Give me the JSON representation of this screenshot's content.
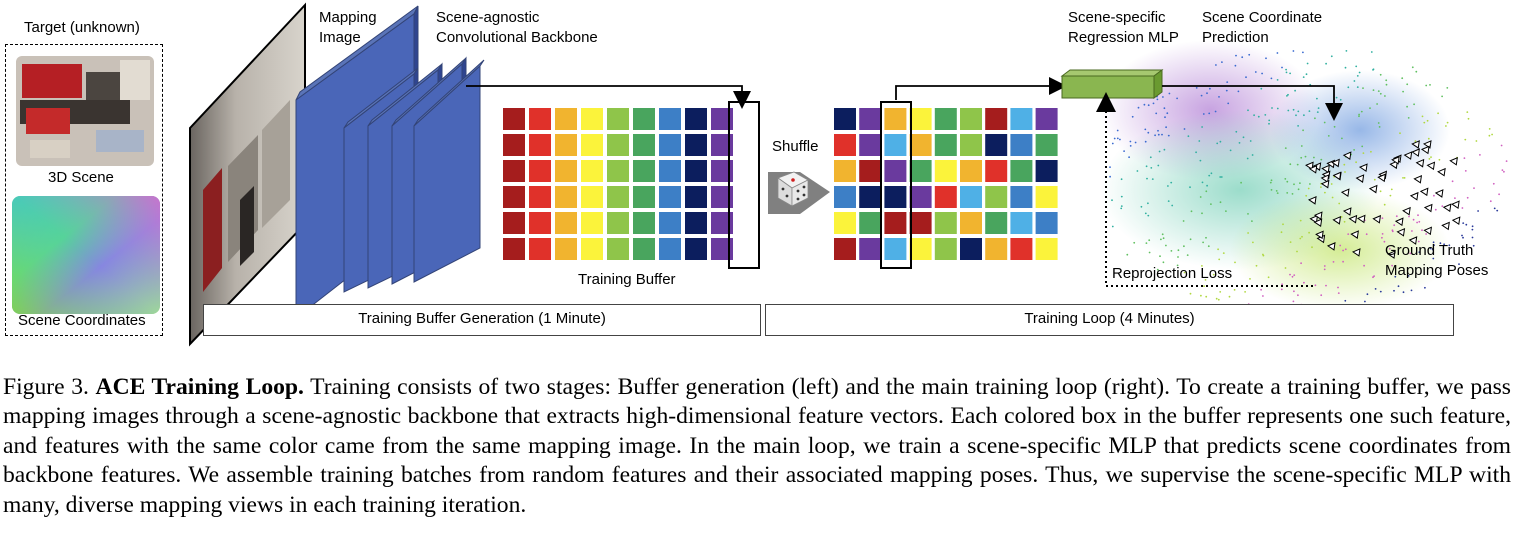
{
  "figure": {
    "target_label": "Target (unknown)",
    "scene_label": "3D Scene",
    "coords_label": "Scene Coordinates",
    "mapping_image_label": [
      "Mapping",
      "Image"
    ],
    "backbone_label": [
      "Scene-agnostic",
      "Convolutional Backbone"
    ],
    "training_buffer_label": "Training Buffer",
    "shuffle_label": "Shuffle",
    "mlp_label": [
      "Scene-specific",
      "Regression MLP"
    ],
    "prediction_label": [
      "Scene Coordinate",
      "Prediction"
    ],
    "reprojection_label": "Reprojection Loss",
    "gt_label": [
      "Ground Truth",
      "Mapping Poses"
    ],
    "stage1_label": "Training Buffer Generation (1 Minute)",
    "stage2_label": "Training Loop (4 Minutes)",
    "palette": [
      "#a51d1d",
      "#e0312a",
      "#f1b42f",
      "#fbf33b",
      "#8fc54a",
      "#49a55e",
      "#3d7fc6",
      "#0c1e5e",
      "#6a3a9e",
      "#4fb0e6"
    ],
    "buffer_columns": [
      0,
      1,
      2,
      3,
      4,
      5,
      6,
      7,
      8
    ],
    "shuffled_grid": [
      [
        7,
        8,
        2,
        3,
        5,
        4,
        0,
        9,
        8
      ],
      [
        1,
        8,
        9,
        2,
        5,
        4,
        7,
        6,
        5
      ],
      [
        2,
        0,
        8,
        5,
        3,
        2,
        1,
        5,
        7
      ],
      [
        6,
        7,
        7,
        8,
        1,
        9,
        4,
        6,
        3
      ],
      [
        3,
        5,
        0,
        0,
        4,
        2,
        5,
        9,
        6
      ],
      [
        0,
        8,
        9,
        3,
        4,
        7,
        2,
        1,
        3
      ]
    ]
  },
  "caption": {
    "prefix": "Figure 3.",
    "title": "ACE Training Loop.",
    "body": "Training consists of two stages: Buffer generation (left) and the main training loop (right). To create a training buffer, we pass mapping images through a scene-agnostic backbone that extracts high-dimensional feature vectors. Each colored box in the buffer represents one such feature, and features with the same color came from the same mapping image. In the main loop, we train a scene-specific MLP that predicts scene coordinates from backbone features. We assemble training batches from random features and their associated mapping poses. Thus, we supervise the scene-specific MLP with many, diverse mapping views in each training iteration."
  }
}
